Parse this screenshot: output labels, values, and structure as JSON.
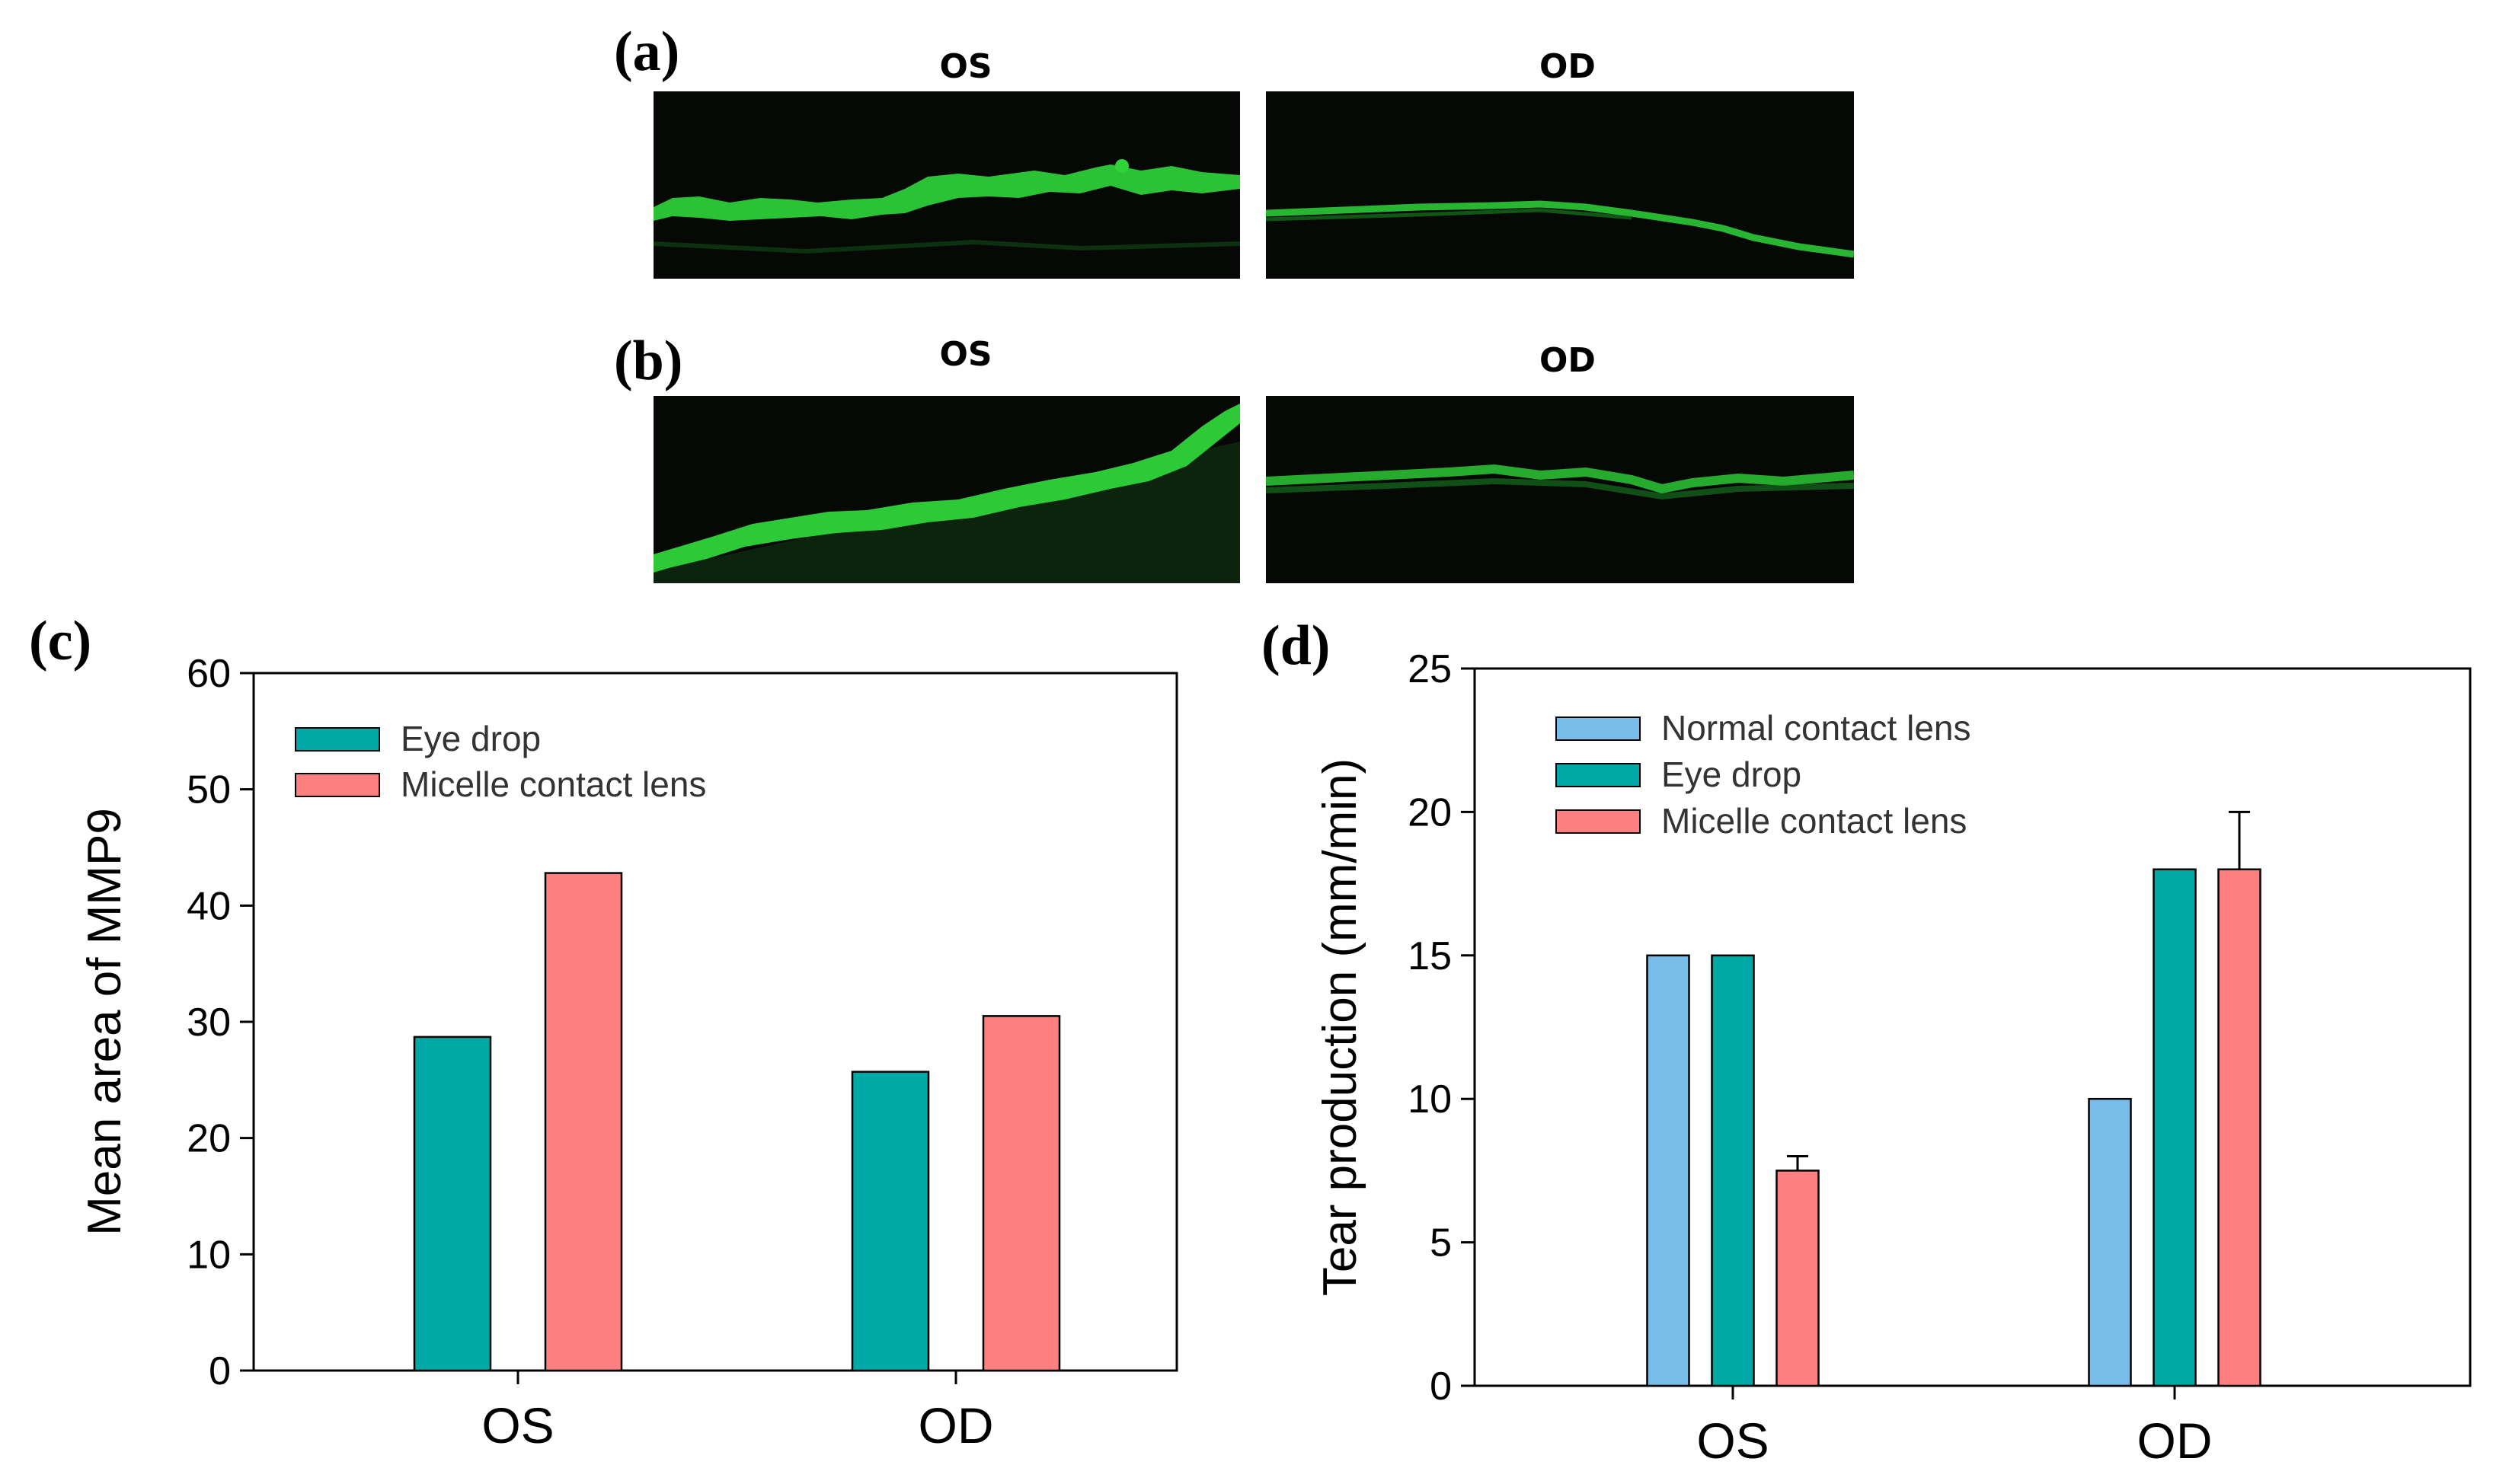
{
  "panels": {
    "a": {
      "letter": "(a)",
      "left_title": "OS",
      "right_title": "OD"
    },
    "b": {
      "letter": "(b)",
      "left_title": "OS",
      "right_title": "OD"
    },
    "c": {
      "letter": "(c)"
    },
    "d": {
      "letter": "(d)"
    }
  },
  "colors": {
    "fluorescence": "#2fd43a",
    "teal": "#00a9a5",
    "salmon": "#ff8080",
    "light_blue": "#78bde9"
  },
  "chart_data": [
    {
      "id": "c",
      "type": "bar",
      "categories": [
        "OS",
        "OD"
      ],
      "series": [
        {
          "name": "Eye drop",
          "values": [
            28.7,
            25.7
          ],
          "color": "#00a9a5"
        },
        {
          "name": "Micelle contact lens",
          "values": [
            42.8,
            30.5
          ],
          "color": "#ff8080"
        }
      ],
      "ylabel": "Mean area of MMP9",
      "xlabel": "",
      "ylim": [
        0,
        60
      ],
      "yticks": [
        0,
        10,
        20,
        30,
        40,
        50,
        60
      ],
      "legend": "top-left",
      "grid": false
    },
    {
      "id": "d",
      "type": "bar",
      "categories": [
        "OS",
        "OD"
      ],
      "series": [
        {
          "name": "Normal contact lens",
          "values": [
            15,
            10
          ],
          "color": "#78bde9"
        },
        {
          "name": "Eye drop",
          "values": [
            15,
            18
          ],
          "color": "#00a9a5"
        },
        {
          "name": "Micelle contact lens",
          "values": [
            7.5,
            18
          ],
          "color": "#ff8080",
          "error": [
            0.5,
            2
          ]
        }
      ],
      "ylabel": "Tear production (mm/min)",
      "xlabel": "",
      "ylim": [
        0,
        25
      ],
      "yticks": [
        0,
        5,
        10,
        15,
        20,
        25
      ],
      "legend": "top-left",
      "grid": false
    }
  ]
}
